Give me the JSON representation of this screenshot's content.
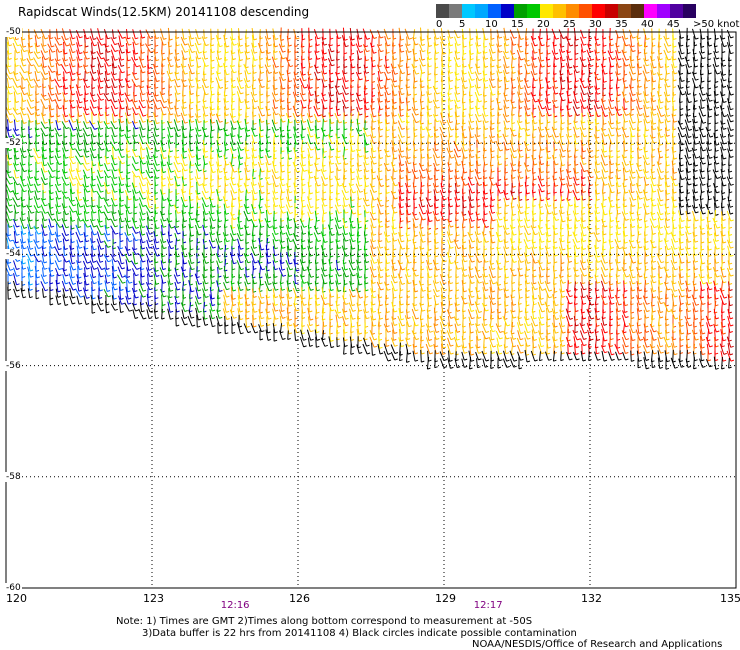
{
  "title": "Rapidscat Winds(12.5KM) 20141108 descending",
  "legend": {
    "colors": [
      "#4a4a4a",
      "#7a7a7a",
      "#00c8ff",
      "#00a8ff",
      "#0060ff",
      "#0000c8",
      "#00a000",
      "#00c800",
      "#ffe800",
      "#ffc000",
      "#ff8c00",
      "#ff5000",
      "#ff0000",
      "#c80000",
      "#8b4513",
      "#5a2d0c",
      "#ff00ff",
      "#a000ff",
      "#5000a0",
      "#280060"
    ],
    "ticks": [
      "0",
      "5",
      "10",
      "15",
      "20",
      "25",
      "30",
      "35",
      "40",
      "45",
      ">50 knots"
    ],
    "value_min": 0,
    "value_max": 50,
    "unit": "knots"
  },
  "map": {
    "lat_labels": [
      "-50",
      "-52",
      "-54",
      "-56",
      "-58",
      "-60"
    ],
    "lat_values": [
      -50,
      -52,
      -54,
      -56,
      -58,
      -60
    ],
    "lon_labels": [
      "120",
      "123",
      "126",
      "129",
      "132",
      "135"
    ],
    "lon_values": [
      120,
      123,
      126,
      129,
      132,
      135
    ],
    "times": [
      {
        "label": "12:16",
        "lon": 124.7
      },
      {
        "label": "12:17",
        "lon": 129.9
      }
    ]
  },
  "notes": {
    "line1": "Note: 1) Times are GMT 2)Times along bottom correspond to measurement at -50S",
    "line2": "3)Data buffer is 22 hrs from 20141108 4) Black circles indicate possible contamination"
  },
  "credit": "NOAA/NESDIS/Office of Research and Applications"
}
